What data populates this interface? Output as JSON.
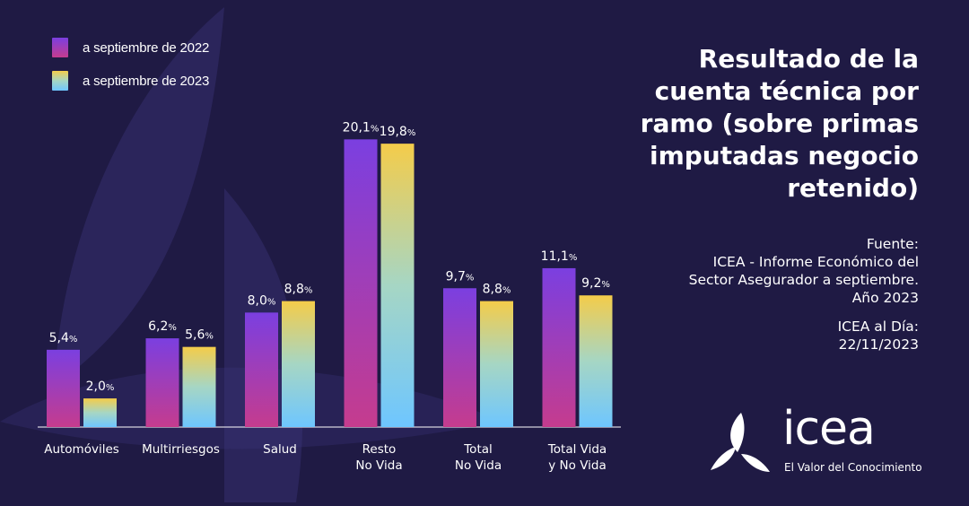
{
  "legend": {
    "series_2022": "a septiembre de 2022",
    "series_2023": "a septiembre de 2023"
  },
  "title": {
    "lines": [
      "Resultado de la",
      "cuenta técnica por",
      "ramo (sobre primas",
      "imputadas negocio",
      "retenido)"
    ]
  },
  "source": {
    "label": "Fuente:",
    "lines": [
      "ICEA - Informe Económico del",
      "Sector Asegurador a septiembre.",
      "Año 2023"
    ],
    "date_label": "ICEA al Día:",
    "date": "22/11/2023"
  },
  "logo": {
    "word": "icea",
    "tagline": "El Valor del Conocimiento"
  },
  "chart_data": {
    "type": "bar",
    "categories": [
      [
        "Automóviles"
      ],
      [
        "Multirriesgos"
      ],
      [
        "Salud"
      ],
      [
        "Resto",
        "No Vida"
      ],
      [
        "Total",
        "No Vida"
      ],
      [
        "Total Vida",
        "y No Vida"
      ]
    ],
    "series": [
      {
        "name": "a septiembre de 2022",
        "values": [
          5.4,
          6.2,
          8.0,
          20.1,
          9.7,
          11.1
        ],
        "labels": [
          "5,4",
          "6,2",
          "8,0",
          "20,1",
          "9,7",
          "11,1"
        ]
      },
      {
        "name": "a septiembre de 2023",
        "values": [
          2.0,
          5.6,
          8.8,
          19.8,
          8.8,
          9.2
        ],
        "labels": [
          "2,0",
          "5,6",
          "8,8",
          "19,8",
          "8,8",
          "9,2"
        ]
      }
    ],
    "unit": "%",
    "ylim": [
      0,
      21
    ],
    "grid": false,
    "legend_position": "top-left"
  },
  "colors": {
    "background": "#1f1a44",
    "series_2022_top": "#7b3fe0",
    "series_2022_bottom": "#c53c8e",
    "series_2023_top": "#f4cc4a",
    "series_2023_bottom": "#6ec6ff"
  }
}
